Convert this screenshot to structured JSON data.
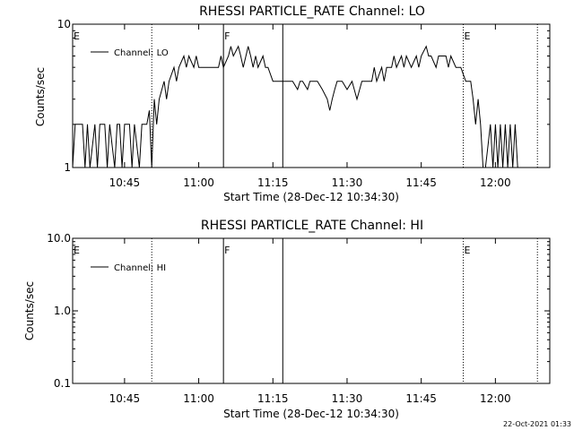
{
  "footer": "22-Oct-2021 01:33",
  "chart_data": [
    {
      "type": "line",
      "title": "RHESSI PARTICLE_RATE Channel: LO",
      "xlabel": "Start Time (28-Dec-12 10:34:30)",
      "ylabel": "Counts/sec",
      "yscale": "log",
      "ylim": [
        1,
        10
      ],
      "xlim": [
        "10:34:30",
        "12:11:00"
      ],
      "x_ticks": [
        "10:45",
        "11:00",
        "11:15",
        "11:30",
        "11:45",
        "12:00"
      ],
      "y_ticks": [
        "1",
        "10"
      ],
      "legend": "top-left",
      "series": [
        {
          "name": "Channel: LO",
          "points": [
            [
              "10:34:30",
              1
            ],
            [
              "10:35:00",
              2
            ],
            [
              "10:36:30",
              2
            ],
            [
              "10:37:00",
              1
            ],
            [
              "10:37:30",
              2
            ],
            [
              "10:38:00",
              1
            ],
            [
              "10:39:00",
              2
            ],
            [
              "10:39:30",
              1
            ],
            [
              "10:40:00",
              2
            ],
            [
              "10:41:00",
              2
            ],
            [
              "10:41:30",
              1
            ],
            [
              "10:42:00",
              2
            ],
            [
              "10:43:00",
              1
            ],
            [
              "10:43:30",
              2
            ],
            [
              "10:44:00",
              2
            ],
            [
              "10:44:30",
              1
            ],
            [
              "10:45:00",
              2
            ],
            [
              "10:46:00",
              2
            ],
            [
              "10:46:30",
              1
            ],
            [
              "10:47:00",
              2
            ],
            [
              "10:48:00",
              1
            ],
            [
              "10:48:30",
              2
            ],
            [
              "10:49:30",
              2
            ],
            [
              "10:50:00",
              2.5
            ],
            [
              "10:50:30",
              1
            ],
            [
              "10:51:00",
              3
            ],
            [
              "10:51:30",
              2
            ],
            [
              "10:52:00",
              3
            ],
            [
              "10:53:00",
              4
            ],
            [
              "10:53:30",
              3
            ],
            [
              "10:54:00",
              4
            ],
            [
              "10:55:00",
              5
            ],
            [
              "10:55:30",
              4
            ],
            [
              "10:56:00",
              5
            ],
            [
              "10:57:00",
              6
            ],
            [
              "10:57:30",
              5
            ],
            [
              "10:58:00",
              6
            ],
            [
              "10:59:00",
              5
            ],
            [
              "10:59:30",
              6
            ],
            [
              "11:00:00",
              5
            ],
            [
              "11:01:00",
              5
            ],
            [
              "11:02:00",
              5
            ],
            [
              "11:03:00",
              5
            ],
            [
              "11:04:00",
              5
            ],
            [
              "11:04:30",
              6
            ],
            [
              "11:05:00",
              5
            ],
            [
              "11:06:00",
              6
            ],
            [
              "11:06:30",
              7
            ],
            [
              "11:07:00",
              6
            ],
            [
              "11:08:00",
              7
            ],
            [
              "11:08:30",
              6
            ],
            [
              "11:09:00",
              5
            ],
            [
              "11:10:00",
              7
            ],
            [
              "11:10:30",
              6
            ],
            [
              "11:11:00",
              5
            ],
            [
              "11:11:30",
              6
            ],
            [
              "11:12:00",
              5
            ],
            [
              "11:13:00",
              6
            ],
            [
              "11:13:30",
              5
            ],
            [
              "11:14:00",
              5
            ],
            [
              "11:15:00",
              4
            ],
            [
              "11:16:00",
              4
            ],
            [
              "11:17:00",
              4
            ],
            [
              "11:18:00",
              4
            ],
            [
              "11:19:00",
              4
            ],
            [
              "11:20:00",
              3.5
            ],
            [
              "11:20:30",
              4
            ],
            [
              "11:21:00",
              4
            ],
            [
              "11:22:00",
              3.5
            ],
            [
              "11:22:30",
              4
            ],
            [
              "11:23:00",
              4
            ],
            [
              "11:24:00",
              4
            ],
            [
              "11:25:00",
              3.5
            ],
            [
              "11:26:00",
              3
            ],
            [
              "11:26:30",
              2.5
            ],
            [
              "11:27:00",
              3
            ],
            [
              "11:27:30",
              3.5
            ],
            [
              "11:28:00",
              4
            ],
            [
              "11:29:00",
              4
            ],
            [
              "11:30:00",
              3.5
            ],
            [
              "11:31:00",
              4
            ],
            [
              "11:32:00",
              3
            ],
            [
              "11:33:00",
              4
            ],
            [
              "11:34:00",
              4
            ],
            [
              "11:35:00",
              4
            ],
            [
              "11:35:30",
              5
            ],
            [
              "11:36:00",
              4
            ],
            [
              "11:37:00",
              5
            ],
            [
              "11:37:30",
              4
            ],
            [
              "11:38:00",
              5
            ],
            [
              "11:39:00",
              5
            ],
            [
              "11:39:30",
              6
            ],
            [
              "11:40:00",
              5
            ],
            [
              "11:41:00",
              6
            ],
            [
              "11:41:30",
              5
            ],
            [
              "11:42:00",
              6
            ],
            [
              "11:43:00",
              5
            ],
            [
              "11:44:00",
              6
            ],
            [
              "11:44:30",
              5
            ],
            [
              "11:45:00",
              6
            ],
            [
              "11:46:00",
              7
            ],
            [
              "11:46:30",
              6
            ],
            [
              "11:47:00",
              6
            ],
            [
              "11:48:00",
              5
            ],
            [
              "11:48:30",
              6
            ],
            [
              "11:49:00",
              6
            ],
            [
              "11:50:00",
              6
            ],
            [
              "11:50:30",
              5
            ],
            [
              "11:51:00",
              6
            ],
            [
              "11:52:00",
              5
            ],
            [
              "11:53:00",
              5
            ],
            [
              "11:54:00",
              4
            ],
            [
              "11:55:00",
              4
            ],
            [
              "11:55:30",
              3
            ],
            [
              "11:56:00",
              2
            ],
            [
              "11:56:30",
              3
            ],
            [
              "11:57:00",
              2
            ],
            [
              "11:57:30",
              1
            ],
            [
              "11:58:00",
              1
            ],
            [
              "11:59:00",
              2
            ],
            [
              "11:59:30",
              1
            ],
            [
              "12:00:00",
              2
            ],
            [
              "12:00:30",
              1
            ],
            [
              "12:01:00",
              2
            ],
            [
              "12:01:30",
              1
            ],
            [
              "12:02:00",
              2
            ],
            [
              "12:02:30",
              1
            ],
            [
              "12:03:00",
              2
            ],
            [
              "12:03:30",
              1
            ],
            [
              "12:04:00",
              2
            ],
            [
              "12:04:30",
              1
            ]
          ]
        }
      ],
      "markers": [
        {
          "time": "10:34:30",
          "label": "E",
          "style": "none"
        },
        {
          "time": "10:50:30",
          "label": "",
          "style": "dotted"
        },
        {
          "time": "11:05:00",
          "label": "F",
          "style": "solid"
        },
        {
          "time": "11:17:00",
          "label": "",
          "style": "solid"
        },
        {
          "time": "11:53:30",
          "label": "E",
          "style": "dotted"
        },
        {
          "time": "12:08:30",
          "label": "",
          "style": "dotted"
        }
      ]
    },
    {
      "type": "line",
      "title": "RHESSI PARTICLE_RATE Channel: HI",
      "xlabel": "Start Time (28-Dec-12 10:34:30)",
      "ylabel": "Counts/sec",
      "yscale": "log",
      "ylim": [
        0.1,
        10
      ],
      "xlim": [
        "10:34:30",
        "12:11:00"
      ],
      "x_ticks": [
        "10:45",
        "11:00",
        "11:15",
        "11:30",
        "11:45",
        "12:00"
      ],
      "y_ticks": [
        "10.0",
        "1.0",
        "0.1"
      ],
      "legend": "top-left",
      "series": [
        {
          "name": "Channel: HI",
          "points": []
        }
      ],
      "markers": [
        {
          "time": "10:34:30",
          "label": "E",
          "style": "none"
        },
        {
          "time": "10:50:30",
          "label": "",
          "style": "dotted"
        },
        {
          "time": "11:05:00",
          "label": "F",
          "style": "solid"
        },
        {
          "time": "11:17:00",
          "label": "",
          "style": "solid"
        },
        {
          "time": "11:53:30",
          "label": "E",
          "style": "dotted"
        },
        {
          "time": "12:08:30",
          "label": "",
          "style": "dotted"
        }
      ]
    }
  ]
}
